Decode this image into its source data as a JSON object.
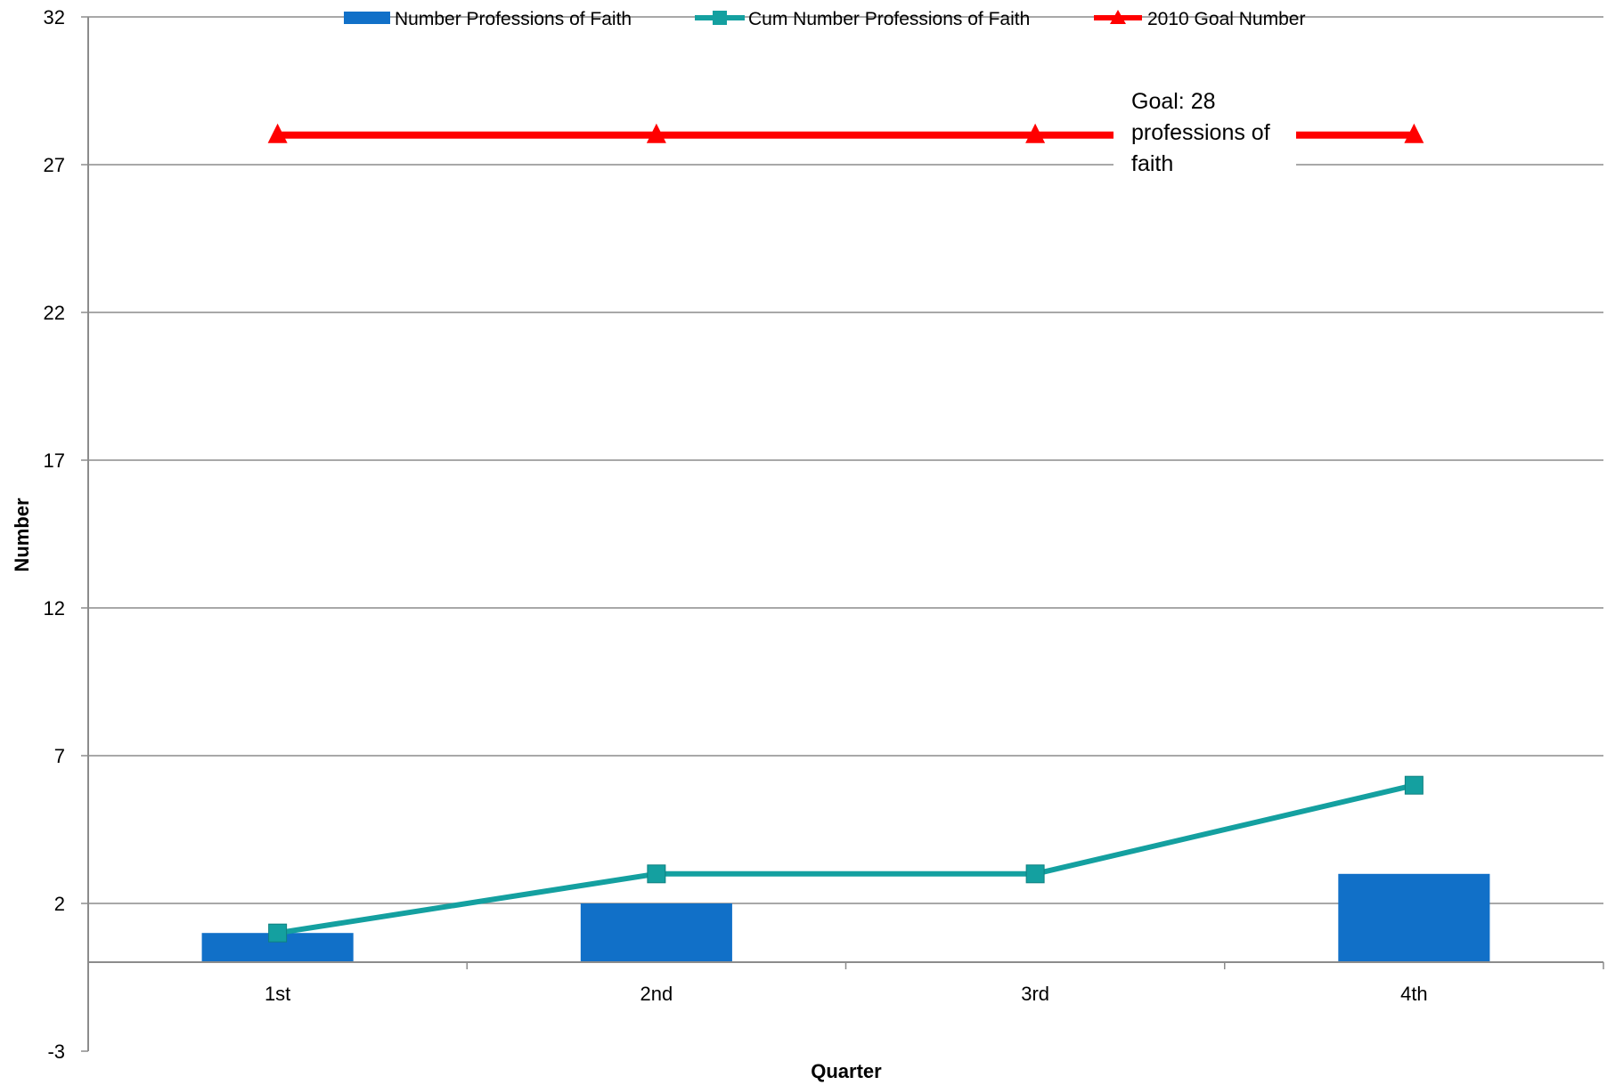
{
  "chart_data": {
    "type": "bar",
    "title": "",
    "xlabel": "Quarter",
    "ylabel": "Number",
    "categories": [
      "1st",
      "2nd",
      "3rd",
      "4th"
    ],
    "ylim": [
      -3,
      32
    ],
    "yticks": [
      -3,
      2,
      7,
      12,
      17,
      22,
      27,
      32
    ],
    "grid": true,
    "legend_position": "top",
    "series": [
      {
        "name": "Number Professions of Faith",
        "type": "bar",
        "color": "#1170c8",
        "values": [
          1,
          2,
          0,
          3
        ]
      },
      {
        "name": "Cum Number Professions of Faith",
        "type": "line",
        "marker": "square",
        "color": "#14a0a0",
        "values": [
          1,
          3,
          3,
          6
        ]
      },
      {
        "name": "2010 Goal Number",
        "type": "line",
        "marker": "triangle",
        "color": "#ff0000",
        "values": [
          28,
          28,
          28,
          28
        ]
      }
    ],
    "annotation": {
      "lines": [
        "Goal: 28",
        "professions of",
        "faith"
      ]
    }
  }
}
